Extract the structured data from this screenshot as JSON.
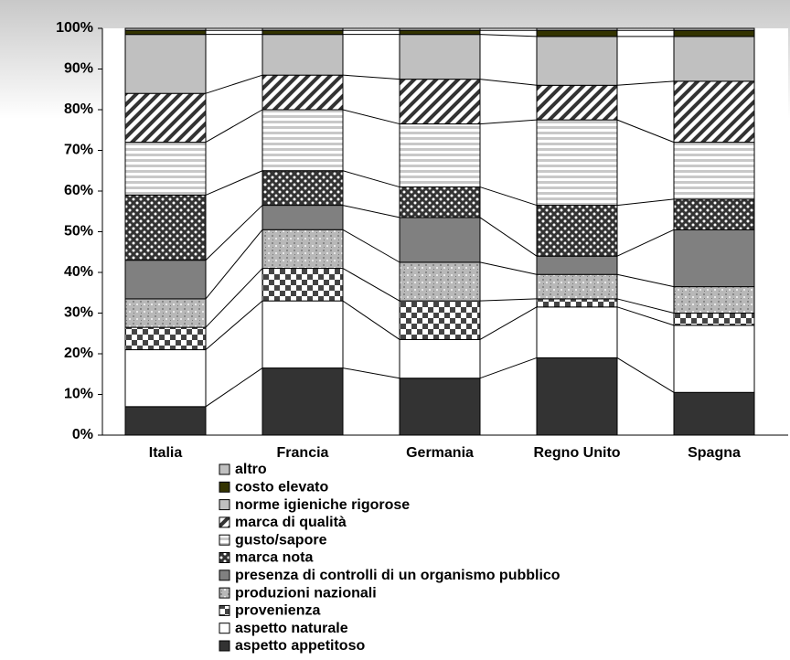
{
  "chart_data": {
    "type": "stacked_bar",
    "categories": [
      "Italia",
      "Francia",
      "Germania",
      "Regno Unito",
      "Spagna"
    ],
    "series": [
      {
        "name": "aspetto appetitoso",
        "color": "#333333",
        "pattern": "solid",
        "values": [
          7,
          16.5,
          14,
          19,
          10.5
        ]
      },
      {
        "name": "aspetto naturale",
        "color": "#ffffff",
        "pattern": "solid",
        "values": [
          14,
          16.5,
          9.5,
          12.5,
          16.5
        ]
      },
      {
        "name": "provenienza",
        "color": "#555555",
        "pattern": "checker",
        "values": [
          5.5,
          8,
          9.5,
          2,
          3
        ]
      },
      {
        "name": "produzioni nazionali",
        "color": "#b0b0b0",
        "pattern": "speckle",
        "values": [
          7,
          9.5,
          9.5,
          6,
          6.5
        ]
      },
      {
        "name": "presenza di controlli di un organismo pubblico",
        "color": "#808080",
        "pattern": "solid",
        "values": [
          9.5,
          6,
          11,
          4.5,
          14
        ]
      },
      {
        "name": "marca nota",
        "color": "#333333",
        "pattern": "dots",
        "values": [
          16,
          8.5,
          7.5,
          12.5,
          7.5
        ]
      },
      {
        "name": "gusto/sapore",
        "color": "#c8c8c8",
        "pattern": "hstripes",
        "values": [
          13,
          15,
          15.5,
          21,
          14
        ]
      },
      {
        "name": "marca di qualità",
        "color": "#333333",
        "pattern": "diagonal",
        "values": [
          12,
          8.5,
          11,
          8.5,
          15
        ]
      },
      {
        "name": "norme igieniche rigorose",
        "color": "#c0c0c0",
        "pattern": "solid",
        "values": [
          14.5,
          10,
          11,
          12,
          11
        ]
      },
      {
        "name": "costo elevato",
        "color": "#333300",
        "pattern": "solid",
        "values": [
          1,
          1,
          1,
          1.5,
          1.5
        ]
      },
      {
        "name": "altro",
        "color": "#c0c0c0",
        "pattern": "solid",
        "values": [
          0.5,
          0.5,
          0.5,
          0.5,
          0.5
        ]
      }
    ],
    "ylim": [
      0,
      100
    ],
    "yticks": [
      {
        "value": 0,
        "label": "0%"
      },
      {
        "value": 10,
        "label": "10%"
      },
      {
        "value": 20,
        "label": "20%"
      },
      {
        "value": 30,
        "label": "30%"
      },
      {
        "value": 40,
        "label": "40%"
      },
      {
        "value": 50,
        "label": "50%"
      },
      {
        "value": 60,
        "label": "60%"
      },
      {
        "value": 70,
        "label": "70%"
      },
      {
        "value": 80,
        "label": "80%"
      },
      {
        "value": 90,
        "label": "90%"
      },
      {
        "value": 100,
        "label": "100%"
      }
    ],
    "legend": "bottom",
    "legend_order": "reversed",
    "connector_lines": true
  }
}
